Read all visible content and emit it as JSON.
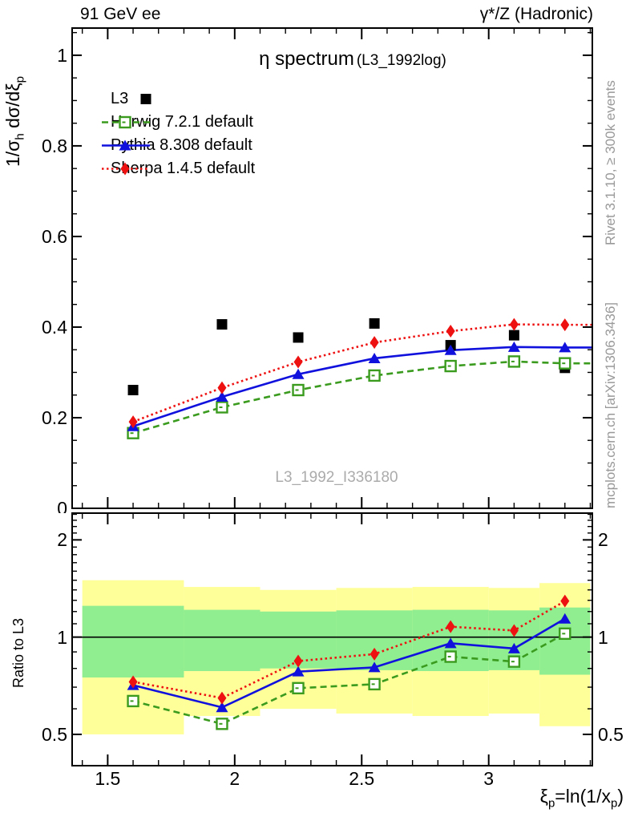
{
  "header": {
    "left": "91 GeV ee",
    "right": "γ*/Z (Hadronic)"
  },
  "titles": {
    "main": "η spectrum",
    "annotation": "(L3_1992log)",
    "watermark": "L3_1992_I336180"
  },
  "sidebar": {
    "top": "Rivet 3.1.10, ≥ 300k events",
    "bottom": "mcplots.cern.ch [arXiv:1306.3436]"
  },
  "axes": {
    "y_label": {
      "pre": "1/σ",
      "sub1": "h",
      "mid": " dσ/dξ",
      "sub2": "p"
    },
    "x_label": {
      "p1": "ξ",
      "s1": "p",
      "p2": "=ln(1/x",
      "s2": "p",
      "p3": ")"
    },
    "ratio_label": "Ratio to L3",
    "main_yticks": [
      "1",
      "0.8",
      "0.6",
      "0.4",
      "0.2",
      "0"
    ],
    "main_ytick_values": [
      1,
      0.8,
      0.6,
      0.4,
      0.2,
      0
    ],
    "xticks": [
      "1.5",
      "2",
      "2.5",
      "3"
    ],
    "xtick_values": [
      1.5,
      2,
      2.5,
      3
    ],
    "ratio_yticks": [
      "2",
      "1",
      "0.5"
    ],
    "ratio_ytick_values": [
      2,
      1,
      0.5
    ]
  },
  "legend": [
    {
      "label": "L3",
      "marker": "square",
      "line": "none",
      "color": "#000000"
    },
    {
      "label": "Herwig 7.2.1 default",
      "marker": "open-square",
      "line": "dashed",
      "color": "#3a9b1f"
    },
    {
      "label": "Pythia 8.308 default",
      "marker": "triangle",
      "line": "solid",
      "color": "#1111dd"
    },
    {
      "label": "Sherpa 1.4.5 default",
      "marker": "diamond",
      "line": "dotted",
      "color": "#ee1111"
    }
  ],
  "colors": {
    "data": "#000000",
    "herwig": "#3a9b1f",
    "pythia": "#1111dd",
    "sherpa": "#ee1111",
    "band_green": "#90ee90",
    "band_yellow": "#ffff9a",
    "ref_line": "#000000"
  },
  "chart_data": {
    "type": "line",
    "title": "η spectrum (L3_1992log)",
    "xlabel": "ξ_p = ln(1/x_p)",
    "ylabel": "1/σ_h dσ/dξ_p",
    "xlim": [
      1.36,
      3.408
    ],
    "x": [
      1.6,
      1.95,
      2.25,
      2.55,
      2.85,
      3.1,
      3.3
    ],
    "main": {
      "ylim": [
        0,
        1.06
      ],
      "scale": "linear",
      "series": [
        {
          "name": "L3",
          "marker": "square",
          "line": "none",
          "color": "#000000",
          "values": [
            0.261,
            0.406,
            0.377,
            0.408,
            0.36,
            0.382,
            0.31
          ]
        },
        {
          "name": "Herwig 7.2.1 default",
          "marker": "open-square",
          "line": "dashed",
          "color": "#3a9b1f",
          "values": [
            0.166,
            0.223,
            0.261,
            0.293,
            0.314,
            0.324,
            0.32
          ]
        },
        {
          "name": "Pythia 8.308 default",
          "marker": "triangle",
          "line": "solid",
          "color": "#1111dd",
          "values": [
            0.181,
            0.246,
            0.296,
            0.331,
            0.349,
            0.356,
            0.355
          ]
        },
        {
          "name": "Sherpa 1.4.5 default",
          "marker": "diamond",
          "line": "dotted",
          "color": "#ee1111",
          "values": [
            0.191,
            0.266,
            0.323,
            0.366,
            0.391,
            0.406,
            0.405
          ]
        }
      ]
    },
    "ratio": {
      "ylim": [
        0.4,
        2.42
      ],
      "scale": "log",
      "reference": 1,
      "series": [
        {
          "name": "Herwig 7.2.1 default",
          "marker": "open-square",
          "line": "dashed",
          "color": "#3a9b1f",
          "values": [
            0.634,
            0.539,
            0.695,
            0.715,
            0.87,
            0.84,
            1.025
          ]
        },
        {
          "name": "Pythia 8.308 default",
          "marker": "triangle",
          "line": "solid",
          "color": "#1111dd",
          "values": [
            0.71,
            0.606,
            0.782,
            0.806,
            0.957,
            0.922,
            1.14
          ]
        },
        {
          "name": "Sherpa 1.4.5 default",
          "marker": "diamond",
          "line": "dotted",
          "color": "#ee1111",
          "values": [
            0.727,
            0.648,
            0.843,
            0.886,
            1.077,
            1.048,
            1.293
          ]
        }
      ],
      "bands": [
        {
          "xlo": 1.4,
          "xhi": 1.8,
          "green": [
            0.75,
            1.25
          ],
          "yellow": [
            0.5,
            1.5
          ]
        },
        {
          "xlo": 1.8,
          "xhi": 2.1,
          "green": [
            0.785,
            1.215
          ],
          "yellow": [
            0.57,
            1.43
          ]
        },
        {
          "xlo": 2.1,
          "xhi": 2.4,
          "green": [
            0.8,
            1.2
          ],
          "yellow": [
            0.6,
            1.4
          ]
        },
        {
          "xlo": 2.4,
          "xhi": 2.7,
          "green": [
            0.79,
            1.21
          ],
          "yellow": [
            0.58,
            1.42
          ]
        },
        {
          "xlo": 2.7,
          "xhi": 3.0,
          "green": [
            0.785,
            1.215
          ],
          "yellow": [
            0.57,
            1.43
          ]
        },
        {
          "xlo": 3.0,
          "xhi": 3.2,
          "green": [
            0.79,
            1.21
          ],
          "yellow": [
            0.58,
            1.42
          ]
        },
        {
          "xlo": 3.2,
          "xhi": 3.4,
          "green": [
            0.765,
            1.235
          ],
          "yellow": [
            0.53,
            1.47
          ]
        }
      ]
    }
  }
}
